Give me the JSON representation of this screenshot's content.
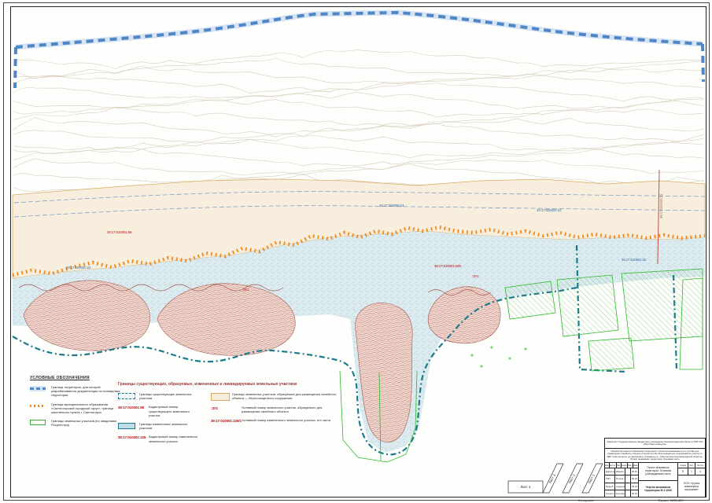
{
  "page": {
    "copied_label": "Копировал",
    "format_label": "Формат 1189x420"
  },
  "colors": {
    "territory_blue": "#4f86c6",
    "municipal_orange": "#f08a1d",
    "existing_teal": "#1d7a8c",
    "rosreestr_green": "#2db82d",
    "formed_beige": "#f8eedd",
    "escarpment_red": "#a2574d",
    "cadnum_red": "#c00000",
    "cadnum_blue": "#2e6da8"
  },
  "map": {
    "labels": [
      {
        "text": "39:17:000000:24",
        "color": "#2e6da8"
      },
      {
        "text": "39:17:000000:34",
        "color": "#2e6da8"
      },
      {
        "text": "39:17:000000:22",
        "color": "#2e6da8"
      },
      {
        "text": "39:17:010001:30",
        "color": "#2e6da8"
      },
      {
        "text": "39:17:010001:56",
        "color": "#c00000"
      },
      {
        "text": "39:17:010001:225",
        "color": "#c00000"
      },
      {
        "text": ":ЗУ1",
        "color": "#c00000"
      },
      {
        "text": ":ЗУ1",
        "color": "#c00000"
      },
      {
        "text": "39:17:000000:21",
        "color": "#c0504d"
      }
    ]
  },
  "legend_symbols": {
    "title": "УСЛОВНЫЕ ОБОЗНАЧЕНИЯ",
    "items": [
      {
        "label": "Граница территории, для которой разрабатывается документация по планировке территории"
      },
      {
        "label": "Граница муниципального образования «Светлогорский городской округ», граница населённого пункта г. Светлогорск"
      },
      {
        "label": "Границы земельных участков (по сведениям Росреестра)"
      }
    ]
  },
  "parcels_legend": {
    "title": "Границы существующих, образуемых, измененных и ликвидируемых земельных участков",
    "items_left": [
      {
        "label": "Границы существующих земельных участков"
      },
      {
        "number": "39:17:010001:56",
        "label": "Кадастровый номер существующего земельного участка"
      },
      {
        "label": "Границы измененных земельных участков"
      },
      {
        "number": "39:17:010001:225",
        "label": "Кадастровый номер измененного земельного участка"
      }
    ],
    "items_right": [
      {
        "label": "Границы земельных участков, образуемых для размещения линейного объекта — берегозащитного сооружения"
      },
      {
        "number": ":ЗУ1",
        "label": "Условный номер земельного участка, образуемого для размещения линейного объекта"
      },
      {
        "number": "39:17:010001:225/1",
        "label": "Условный номер измененного земельного участка, его части"
      }
    ]
  },
  "sheet_tabs": [
    "Лист 4",
    "Лист 3",
    "Лист 2",
    "Лист 1"
  ],
  "titleblock": {
    "customer": "Заказчик: Государственное бюджетное учреждение Калининградской области (ГБУ КО) «Балтберегозащита»",
    "project": "Разработка проекта планировки территории с проектом межевания в его составе для размещения линейного объекта «Строительство берегозащитных сооружений на участке от ЦВП «Светлогорск» до пансионата «Отрадное» в г. Светлогорске Калининградской области». Проект межевания территории. Основная часть",
    "header_cells": [
      "Изм.",
      "Кол.уч.",
      "Лист",
      "№док.",
      "Подп.",
      "Дата"
    ],
    "roles": [
      [
        "Директор",
        "Иванов"
      ],
      [
        "ГИП",
        "Петров"
      ],
      [
        "Разраб.",
        "Сидорова"
      ],
      [
        "Н.контр.",
        "Козлова"
      ]
    ],
    "date": "06.20",
    "doc_title": "Проект межевания территории. Основная (утверждаемая) часть",
    "sheet_title": "Чертеж межевания территории М 1:1000",
    "stage_label": "Стадия",
    "sheet_label": "Лист",
    "sheets_label": "Листов",
    "stage": "П",
    "sheet_no": "1",
    "sheets_total": "4",
    "org": "ООО «Группа инженерных изысканий»"
  }
}
